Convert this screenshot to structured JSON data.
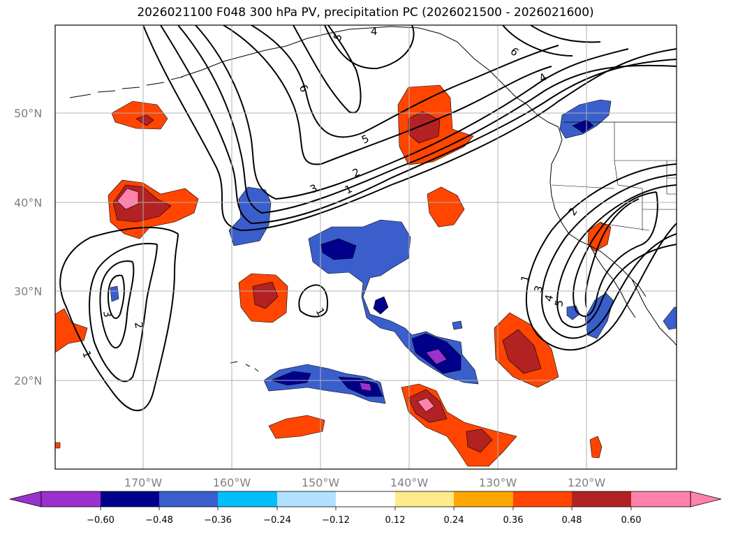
{
  "title": "2026021100 F048 300 hPa PV, precipitation PC (2026021500 - 2026021600)",
  "lat_labels": [
    "50°N",
    "40°N",
    "30°N",
    "20°N"
  ],
  "lon_labels": [
    "170°W",
    "160°W",
    "150°W",
    "140°W",
    "130°W",
    "120°W"
  ],
  "contour_labels": {
    "c5a": "5",
    "c4a": "4",
    "c6a": "6",
    "c6b": "6",
    "c4b": "4",
    "c5b": "5",
    "c2a": "2",
    "c3a": "3",
    "c1a": "1",
    "c1b": "1",
    "c3b": "3",
    "c2b": "2",
    "c1c": "1",
    "c1d": "1",
    "c3c": "3",
    "c4c": "4",
    "c5c": "5",
    "c2c": "2"
  },
  "colorbar": {
    "ticks": [
      "−0.60",
      "−0.48",
      "−0.36",
      "−0.24",
      "−0.12",
      "0.12",
      "0.24",
      "0.36",
      "0.48",
      "0.60"
    ],
    "colors": [
      "#9932cc",
      "#00008b",
      "#3a5fcd",
      "#00bfff",
      "#b0e2ff",
      "#ffffff",
      "#ffeb8a",
      "#ffa500",
      "#ff4500",
      "#b22222",
      "#ff82ab",
      "#ff82ab"
    ]
  }
}
